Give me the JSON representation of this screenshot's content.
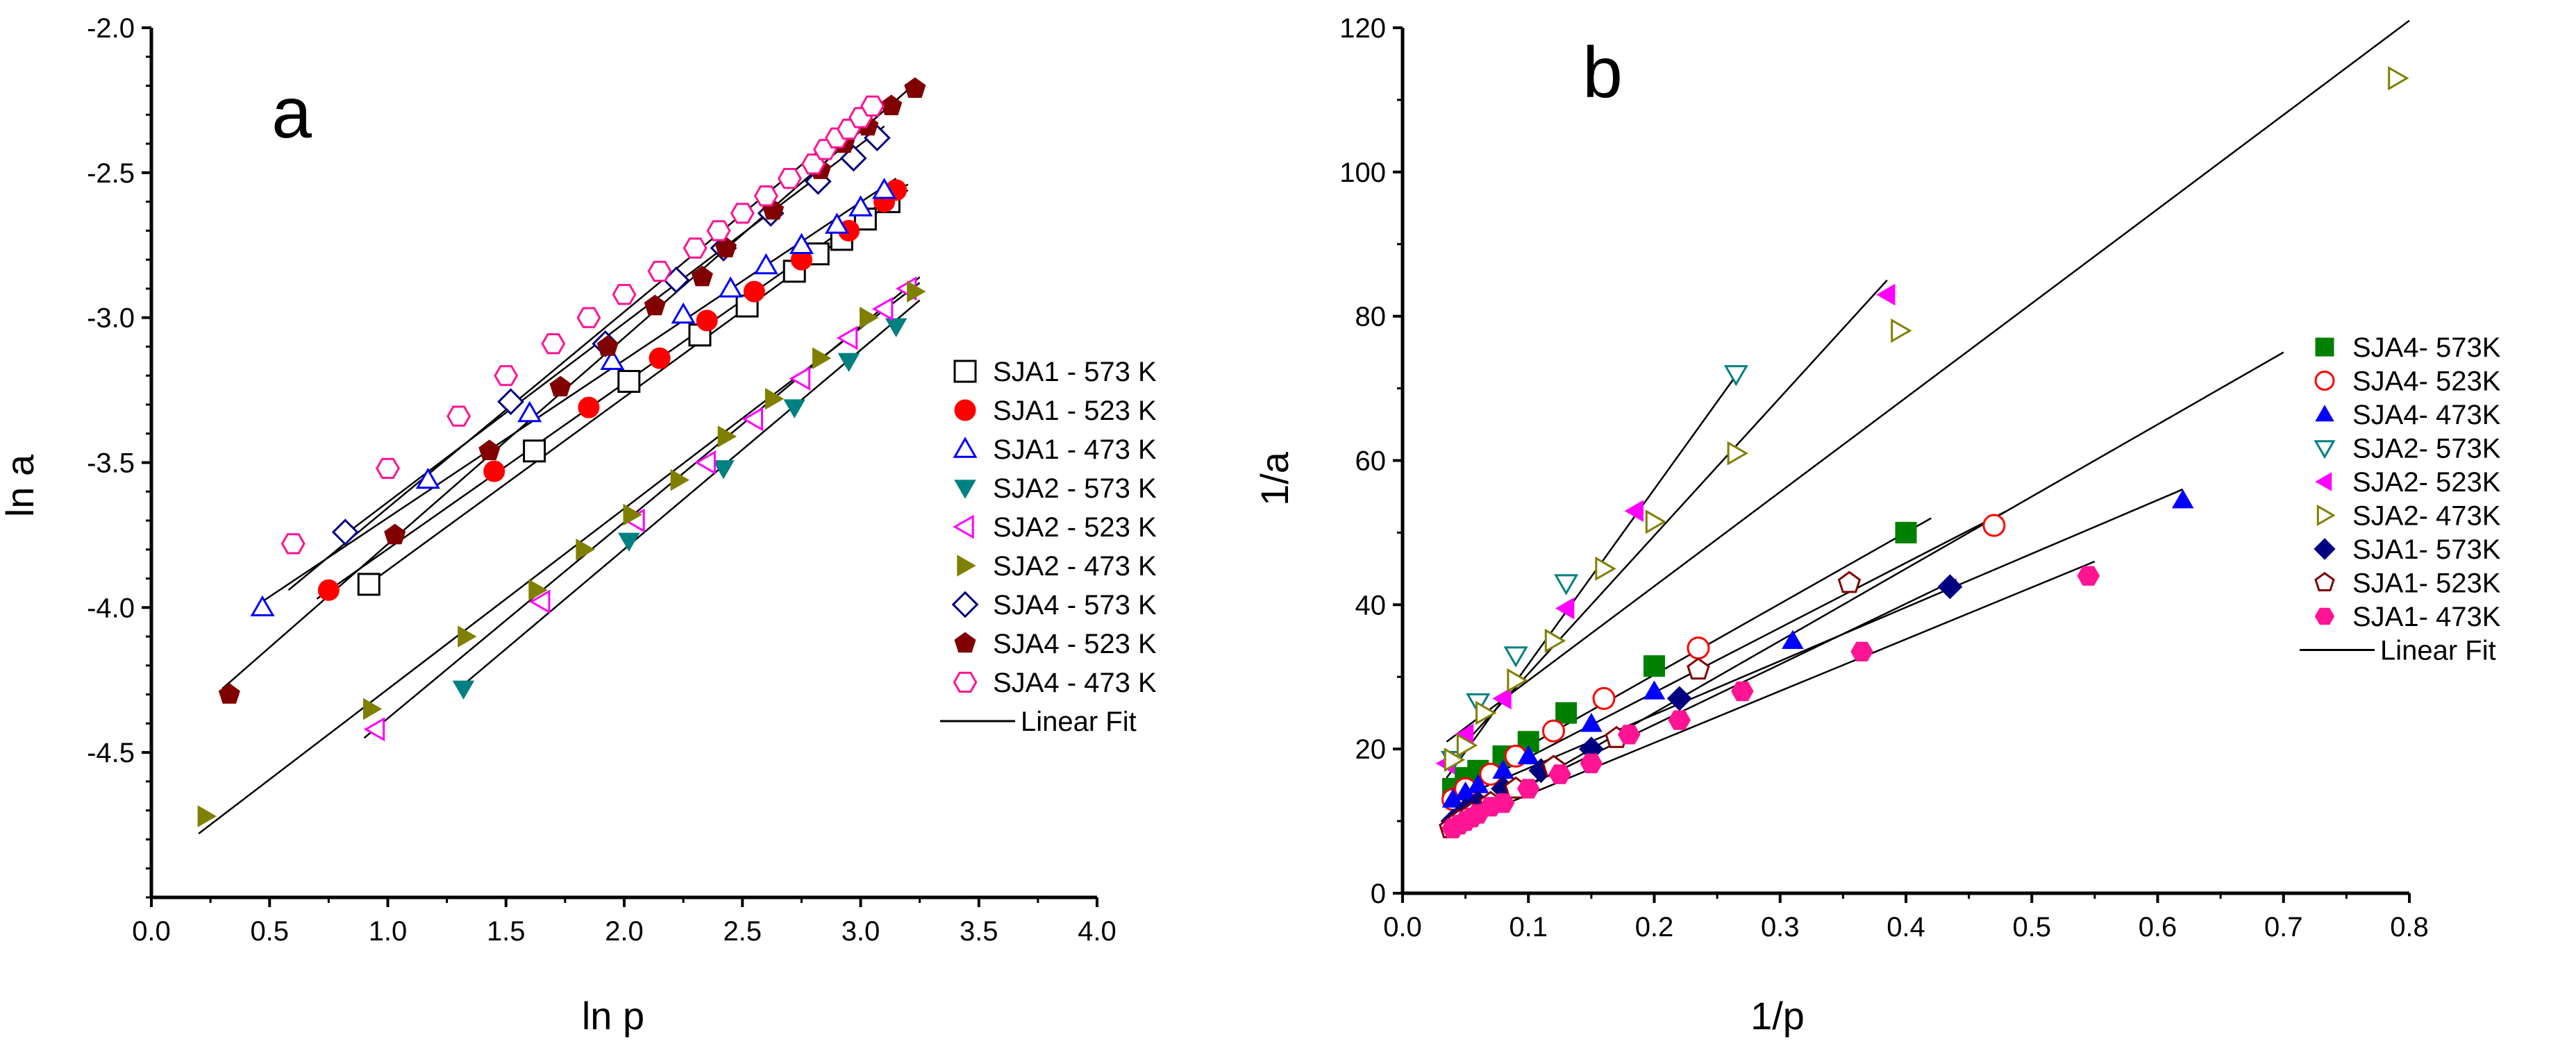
{
  "chart_data": [
    {
      "id": "a",
      "type": "scatter",
      "panel_label": "a",
      "xlabel": "ln p",
      "ylabel": "ln a",
      "xlim": [
        0.0,
        4.0
      ],
      "ylim": [
        -5.0,
        -2.0
      ],
      "xticks": [
        "0.0",
        "0.5",
        "1.0",
        "1.5",
        "2.0",
        "2.5",
        "3.0",
        "3.5",
        "4.0"
      ],
      "yticks": [
        "-4.5",
        "-4.0",
        "-3.5",
        "-3.0",
        "-2.5",
        "-2.0"
      ],
      "fit_label": "Linear Fit",
      "series": [
        {
          "name": "SJA1 - 573 K",
          "marker": "square",
          "filled": false,
          "color": "#000000",
          "x": [
            0.92,
            1.62,
            2.02,
            2.32,
            2.52,
            2.72,
            2.82,
            2.92,
            3.02,
            3.12
          ],
          "y": [
            -3.92,
            -3.46,
            -3.22,
            -3.06,
            -2.96,
            -2.84,
            -2.78,
            -2.73,
            -2.66,
            -2.6
          ],
          "fit": {
            "x": [
              0.9,
              3.2
            ],
            "y": [
              -3.93,
              -2.56
            ]
          }
        },
        {
          "name": "SJA1 - 523 K",
          "marker": "circle",
          "filled": true,
          "color": "#ff0000",
          "x": [
            0.75,
            1.45,
            1.85,
            2.15,
            2.35,
            2.55,
            2.75,
            2.95,
            3.1,
            3.15
          ],
          "y": [
            -3.94,
            -3.53,
            -3.31,
            -3.14,
            -3.01,
            -2.91,
            -2.8,
            -2.7,
            -2.6,
            -2.56
          ],
          "fit": {
            "x": [
              0.7,
              3.2
            ],
            "y": [
              -3.97,
              -2.54
            ]
          }
        },
        {
          "name": "SJA1 - 473 K",
          "marker": "triangle-up",
          "filled": false,
          "color": "#0000ff",
          "x": [
            0.47,
            1.17,
            1.6,
            1.95,
            2.25,
            2.45,
            2.6,
            2.75,
            2.9,
            3.0,
            3.1
          ],
          "y": [
            -4.0,
            -3.56,
            -3.33,
            -3.15,
            -2.99,
            -2.9,
            -2.82,
            -2.75,
            -2.68,
            -2.62,
            -2.56
          ],
          "fit": {
            "x": [
              0.45,
              3.15
            ],
            "y": [
              -3.99,
              -2.52
            ]
          }
        },
        {
          "name": "SJA2 - 573 K",
          "marker": "triangle-down",
          "filled": true,
          "color": "#008080",
          "x": [
            1.32,
            2.02,
            2.42,
            2.72,
            2.95,
            3.15
          ],
          "y": [
            -4.28,
            -3.77,
            -3.52,
            -3.31,
            -3.15,
            -3.03
          ],
          "fit": {
            "x": [
              1.3,
              3.25
            ],
            "y": [
              -4.28,
              -2.94
            ]
          }
        },
        {
          "name": "SJA2 - 523 K",
          "marker": "triangle-left",
          "filled": false,
          "color": "#ff00ff",
          "x": [
            0.95,
            1.65,
            2.05,
            2.35,
            2.55,
            2.75,
            2.95,
            3.1,
            3.2
          ],
          "y": [
            -4.42,
            -3.98,
            -3.7,
            -3.5,
            -3.35,
            -3.21,
            -3.07,
            -2.97,
            -2.9
          ],
          "fit": {
            "x": [
              0.9,
              3.25
            ],
            "y": [
              -4.45,
              -2.86
            ]
          }
        },
        {
          "name": "SJA2 - 473 K",
          "marker": "triangle-right",
          "filled": true,
          "color": "#808000",
          "x": [
            0.23,
            0.93,
            1.33,
            1.63,
            1.83,
            2.03,
            2.23,
            2.43,
            2.63,
            2.83,
            3.03,
            3.23
          ],
          "y": [
            -4.72,
            -4.35,
            -4.1,
            -3.94,
            -3.8,
            -3.68,
            -3.56,
            -3.41,
            -3.28,
            -3.14,
            -3.0,
            -2.91
          ],
          "fit": {
            "x": [
              0.2,
              3.25
            ],
            "y": [
              -4.78,
              -2.88
            ]
          }
        },
        {
          "name": "SJA4 - 573 K",
          "marker": "diamond",
          "filled": false,
          "color": "#000080",
          "x": [
            0.82,
            1.52,
            1.92,
            2.22,
            2.42,
            2.62,
            2.82,
            2.97,
            3.07
          ],
          "y": [
            -3.74,
            -3.29,
            -3.09,
            -2.87,
            -2.76,
            -2.64,
            -2.53,
            -2.45,
            -2.38
          ],
          "fit": {
            "x": [
              0.8,
              3.1
            ],
            "y": [
              -3.76,
              -2.34
            ]
          }
        },
        {
          "name": "SJA4 - 523 K",
          "marker": "pentagon",
          "filled": true,
          "color": "#800000",
          "x": [
            0.33,
            1.03,
            1.43,
            1.73,
            1.93,
            2.13,
            2.33,
            2.43,
            2.63,
            2.83,
            2.93,
            3.03,
            3.13,
            3.23
          ],
          "y": [
            -4.3,
            -3.75,
            -3.46,
            -3.24,
            -3.1,
            -2.96,
            -2.86,
            -2.76,
            -2.63,
            -2.49,
            -2.4,
            -2.34,
            -2.27,
            -2.21
          ],
          "fit": {
            "x": [
              0.3,
              3.22
            ],
            "y": [
              -4.28,
              -2.2
            ]
          }
        },
        {
          "name": "SJA4 - 473 K",
          "marker": "hexagon",
          "filled": false,
          "color": "#ff1493",
          "x": [
            0.6,
            1.0,
            1.3,
            1.5,
            1.7,
            1.85,
            2.0,
            2.15,
            2.3,
            2.4,
            2.5,
            2.6,
            2.7,
            2.8,
            2.85,
            2.9,
            2.95,
            3.0,
            3.05
          ],
          "y": [
            -3.78,
            -3.52,
            -3.34,
            -3.2,
            -3.09,
            -3.0,
            -2.92,
            -2.84,
            -2.76,
            -2.7,
            -2.64,
            -2.58,
            -2.52,
            -2.47,
            -2.42,
            -2.38,
            -2.35,
            -2.31,
            -2.27
          ],
          "fit": {
            "x": [
              0.58,
              3.08
            ],
            "y": [
              -3.94,
              -2.25
            ]
          }
        }
      ]
    },
    {
      "id": "b",
      "type": "scatter",
      "panel_label": "b",
      "xlabel": "1/p",
      "ylabel": "1/a",
      "xlim": [
        0.0,
        0.8
      ],
      "ylim": [
        0,
        120
      ],
      "xticks": [
        "0.0",
        "0.1",
        "0.2",
        "0.3",
        "0.4",
        "0.5",
        "0.6",
        "0.7",
        "0.8"
      ],
      "yticks": [
        "0",
        "20",
        "40",
        "60",
        "80",
        "100",
        "120"
      ],
      "fit_label": "Linear Fit",
      "series": [
        {
          "name": "SJA4- 573K",
          "marker": "square",
          "filled": true,
          "color": "#008000",
          "x": [
            0.04,
            0.05,
            0.06,
            0.08,
            0.1,
            0.13,
            0.2,
            0.4
          ],
          "y": [
            14.5,
            16.0,
            17.0,
            19.0,
            21.0,
            25.0,
            31.5,
            50.0
          ],
          "fit": {
            "x": [
              0.035,
              0.42
            ],
            "y": [
              14.0,
              52.0
            ]
          }
        },
        {
          "name": "SJA4- 523K",
          "marker": "circle",
          "filled": false,
          "color": "#ff0000",
          "x": [
            0.04,
            0.05,
            0.07,
            0.09,
            0.12,
            0.16,
            0.235,
            0.47
          ],
          "y": [
            13.0,
            14.5,
            16.5,
            19.0,
            22.5,
            27.0,
            34.0,
            51.0
          ],
          "fit": {
            "x": [
              0.035,
              0.48
            ],
            "y": [
              13.0,
              53.0
            ]
          }
        },
        {
          "name": "SJA4- 473K",
          "marker": "triangle-up",
          "filled": true,
          "color": "#0000ff",
          "x": [
            0.04,
            0.05,
            0.06,
            0.08,
            0.1,
            0.15,
            0.2,
            0.31,
            0.62
          ],
          "y": [
            13.0,
            14.0,
            15.0,
            17.0,
            19.0,
            23.5,
            28.0,
            35.0,
            54.5
          ],
          "fit": {
            "x": [
              0.035,
              0.62
            ],
            "y": [
              12.5,
              56.0
            ]
          }
        },
        {
          "name": "SJA2- 573K",
          "marker": "triangle-down",
          "filled": false,
          "color": "#008080",
          "x": [
            0.04,
            0.06,
            0.09,
            0.13,
            0.265
          ],
          "y": [
            18.5,
            26.5,
            33.0,
            43.0,
            72.0
          ],
          "fit": {
            "x": [
              0.035,
              0.27
            ],
            "y": [
              16.0,
              73.0
            ]
          }
        },
        {
          "name": "SJA2- 523K",
          "marker": "triangle-left",
          "filled": true,
          "color": "#ff00ff",
          "x": [
            0.035,
            0.05,
            0.08,
            0.13,
            0.185,
            0.385
          ],
          "y": [
            18.0,
            22.0,
            27.0,
            39.5,
            53.0,
            83.0
          ],
          "fit": {
            "x": [
              0.035,
              0.385
            ],
            "y": [
              18.0,
              85.0
            ]
          }
        },
        {
          "name": "SJA2- 473K",
          "marker": "triangle-right",
          "filled": false,
          "color": "#808000",
          "x": [
            0.04,
            0.05,
            0.065,
            0.09,
            0.12,
            0.16,
            0.2,
            0.265,
            0.395,
            0.79
          ],
          "y": [
            18.5,
            20.5,
            25.0,
            29.5,
            35.0,
            45.0,
            51.5,
            61.0,
            78.0,
            113.0
          ],
          "fit": {
            "x": [
              0.035,
              0.8
            ],
            "y": [
              21.0,
              121.0
            ]
          }
        },
        {
          "name": "SJA1- 573K",
          "marker": "diamond",
          "filled": true,
          "color": "#000080",
          "x": [
            0.04,
            0.05,
            0.06,
            0.08,
            0.11,
            0.15,
            0.22,
            0.435
          ],
          "y": [
            10.0,
            11.5,
            12.5,
            14.5,
            17.0,
            20.0,
            27.0,
            42.5
          ],
          "fit": {
            "x": [
              0.035,
              0.44
            ],
            "y": [
              9.5,
              43.5
            ]
          }
        },
        {
          "name": "SJA1- 523K",
          "marker": "pentagon",
          "filled": false,
          "color": "#800000",
          "x": [
            0.038,
            0.045,
            0.055,
            0.07,
            0.09,
            0.12,
            0.17,
            0.235,
            0.355
          ],
          "y": [
            9.0,
            10.0,
            11.0,
            12.5,
            14.5,
            17.5,
            21.5,
            31.0,
            43.0
          ],
          "fit": {
            "x": [
              0.035,
              0.7
            ],
            "y": [
              8.5,
              75.0
            ]
          }
        },
        {
          "name": "SJA1- 473K",
          "marker": "hexagon",
          "filled": true,
          "color": "#ff1493",
          "x": [
            0.04,
            0.045,
            0.05,
            0.055,
            0.06,
            0.07,
            0.08,
            0.1,
            0.125,
            0.15,
            0.18,
            0.22,
            0.27,
            0.365,
            0.545
          ],
          "y": [
            9.0,
            9.5,
            10.0,
            10.5,
            11.0,
            12.0,
            12.5,
            14.5,
            16.5,
            18.0,
            22.0,
            24.0,
            28.0,
            33.5,
            44.0
          ],
          "fit": {
            "x": [
              0.035,
              0.55
            ],
            "y": [
              9.0,
              46.0
            ]
          }
        }
      ]
    }
  ]
}
